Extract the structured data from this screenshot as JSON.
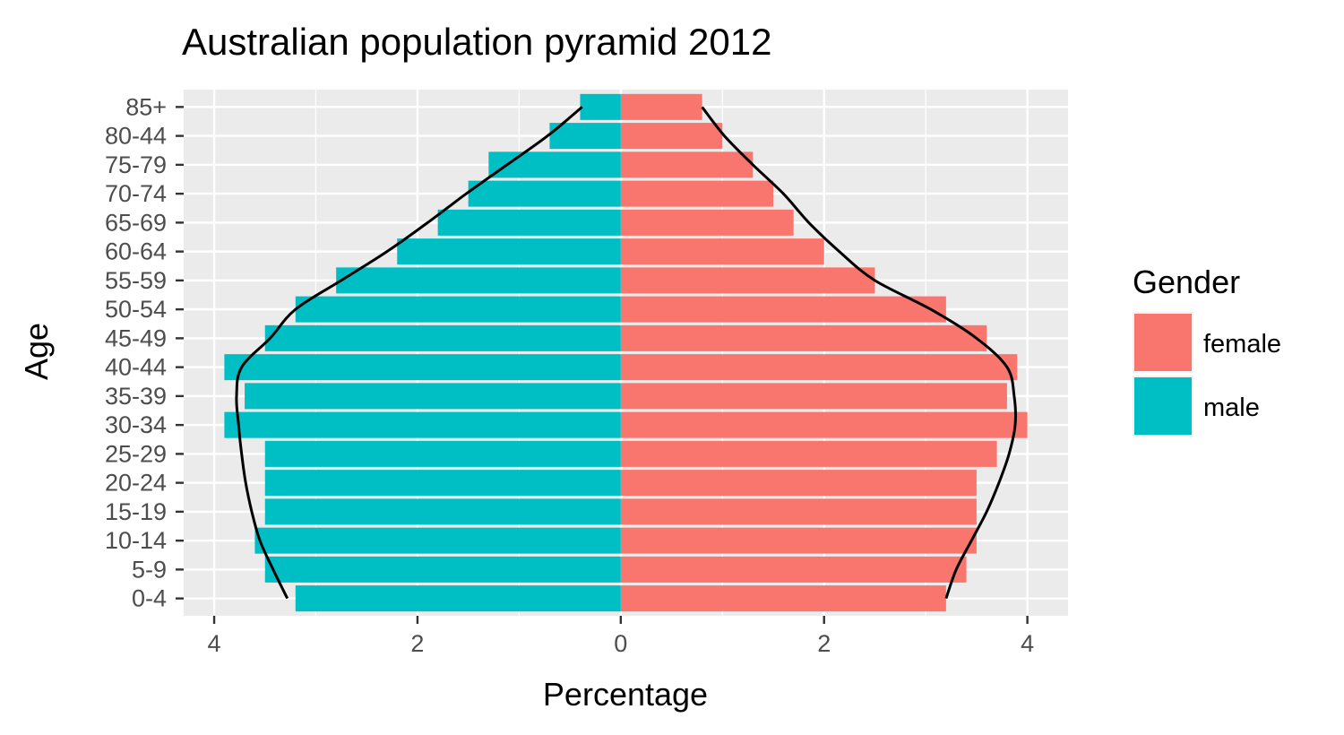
{
  "chart_data": {
    "type": "bar",
    "orientation": "horizontal",
    "title": "Australian population pyramid 2012",
    "xlabel": "Percentage",
    "ylabel": "Age",
    "categories": [
      "0-4",
      "5-9",
      "10-14",
      "15-19",
      "20-24",
      "25-29",
      "30-34",
      "35-39",
      "40-44",
      "45-49",
      "50-54",
      "55-59",
      "60-64",
      "65-69",
      "70-74",
      "75-79",
      "80-44",
      "85+"
    ],
    "series": [
      {
        "name": "female",
        "color": "#F8766D",
        "direction": "positive",
        "values": [
          3.2,
          3.4,
          3.5,
          3.5,
          3.5,
          3.7,
          4.0,
          3.8,
          3.9,
          3.6,
          3.2,
          2.5,
          2.0,
          1.7,
          1.5,
          1.3,
          1.0,
          0.8
        ]
      },
      {
        "name": "male",
        "color": "#00BFC4",
        "direction": "negative",
        "values": [
          3.2,
          3.5,
          3.6,
          3.5,
          3.5,
          3.5,
          3.9,
          3.7,
          3.9,
          3.5,
          3.2,
          2.8,
          2.2,
          1.8,
          1.5,
          1.3,
          0.7,
          0.4
        ]
      }
    ],
    "reference_lines": {
      "female": [
        3.2,
        3.3,
        3.45,
        3.6,
        3.72,
        3.82,
        3.88,
        3.87,
        3.8,
        3.5,
        3.05,
        2.5,
        2.15,
        1.85,
        1.6,
        1.3,
        1.02,
        0.8
      ],
      "male": [
        3.28,
        3.42,
        3.55,
        3.63,
        3.69,
        3.73,
        3.76,
        3.78,
        3.73,
        3.45,
        3.2,
        2.75,
        2.3,
        1.9,
        1.52,
        1.12,
        0.72,
        0.38
      ]
    },
    "xlim": [
      -4.3,
      4.4
    ],
    "xticks": [
      -4,
      -2,
      0,
      2,
      4
    ],
    "xtick_labels": [
      "4",
      "2",
      "0",
      "2",
      "4"
    ],
    "grid": true,
    "legend_position": "right",
    "legend_title": "Gender",
    "legend": [
      "female",
      "male"
    ]
  }
}
